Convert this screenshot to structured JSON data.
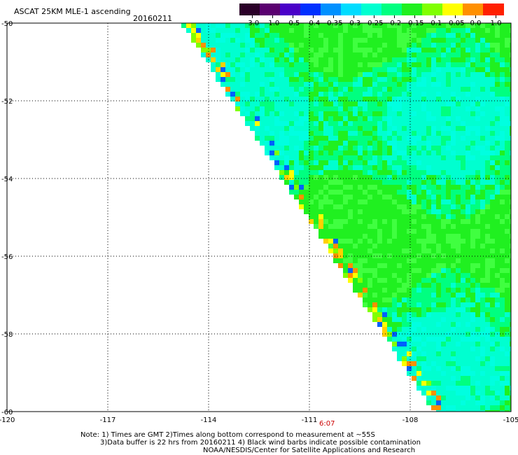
{
  "header": {
    "title": "ASCAT 25KM MLE-1 ascending",
    "date": "20160211"
  },
  "colorbar": {
    "tick_labels": [
      "-3.0",
      "-1.0",
      "-0.5",
      "-0.4",
      "-0.35",
      "-0.3",
      "-0.25",
      "-0.2",
      "-0.15",
      "-0.1",
      "-0.05",
      "0.0",
      "1.0"
    ],
    "colors": [
      "#2a0028",
      "#5a0070",
      "#4a00c8",
      "#0030ff",
      "#0090ff",
      "#00dcff",
      "#00ffd0",
      "#00ff80",
      "#20f020",
      "#80ff00",
      "#ffff00",
      "#ff9000",
      "#ff2000"
    ]
  },
  "map": {
    "lon_labels": [
      "-120",
      "-117",
      "-114",
      "-111",
      "-108",
      "-105"
    ],
    "lat_labels": [
      "-50",
      "-52",
      "-54",
      "-56",
      "-58",
      "-60"
    ],
    "lon_range": [
      -120,
      -105
    ],
    "lat_range": [
      -60,
      -50
    ],
    "grid": true,
    "swath_colors": [
      "#00ffd0",
      "#00ff80",
      "#20f020",
      "#40ff40",
      "#00ffe0",
      "#60ff20"
    ],
    "edge_colors": [
      "#ffff00",
      "#ffd000",
      "#ff9000",
      "#80ff00",
      "#0060ff"
    ]
  },
  "time_label": "6:07",
  "notes": {
    "line1": "Note: 1) Times are GMT 2)Times along bottom correspond to measurement at ~55S",
    "line2": "3)Data buffer is 22 hrs from 20160211 4) Black wind barbs indicate possible contamination",
    "line3": "NOAA/NESDIS/Center for Satellite Applications and Research"
  }
}
